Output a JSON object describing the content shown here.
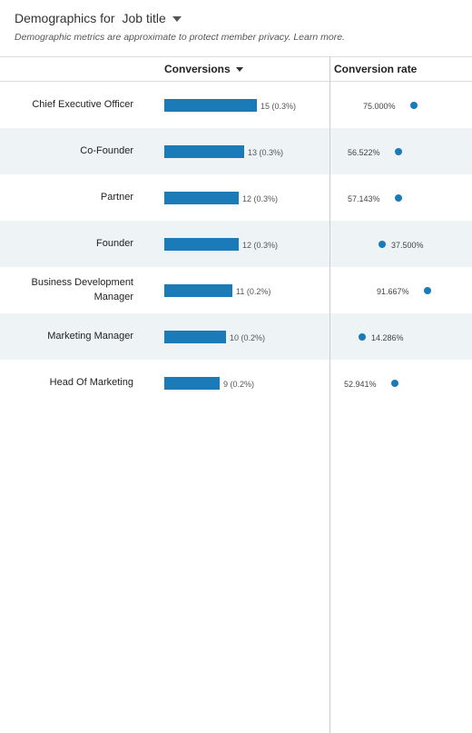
{
  "header": {
    "prefix": "Demographics for",
    "dropdown_value": "Job title",
    "subtitle": "Demographic metrics are approximate to protect member privacy. Learn more."
  },
  "columns": {
    "conversions": "Conversions",
    "conversion_rate": "Conversion rate"
  },
  "chart_data": {
    "type": "bar",
    "categories": [
      "Chief Executive Officer",
      "Co-Founder",
      "Partner",
      "Founder",
      "Business Development Manager",
      "Marketing Manager",
      "Head Of Marketing"
    ],
    "series": [
      {
        "values": [
          15,
          13,
          12,
          12,
          11,
          10,
          9
        ]
      },
      {
        "values": [
          75.0,
          56.522,
          57.143,
          37.5,
          91.667,
          14.286,
          52.941
        ]
      }
    ]
  },
  "rows": [
    {
      "label": "Chief Executive Officer",
      "conv_label": "15 (0.3%)",
      "rate_label": "75.000%"
    },
    {
      "label": "Co-Founder",
      "conv_label": "13 (0.3%)",
      "rate_label": "56.522%"
    },
    {
      "label": "Partner",
      "conv_label": "12 (0.3%)",
      "rate_label": "57.143%"
    },
    {
      "label": "Founder",
      "conv_label": "12 (0.3%)",
      "rate_label": "37.500%"
    },
    {
      "label": "Business Development Manager",
      "conv_label": "11 (0.2%)",
      "rate_label": "91.667%"
    },
    {
      "label": "Marketing Manager",
      "conv_label": "10 (0.2%)",
      "rate_label": "14.286%"
    },
    {
      "label": "Head Of Marketing",
      "conv_label": "9 (0.2%)",
      "rate_label": "52.941%"
    }
  ],
  "colors": {
    "bar": "#1b7ab8",
    "alt_row": "#eef3f6"
  }
}
